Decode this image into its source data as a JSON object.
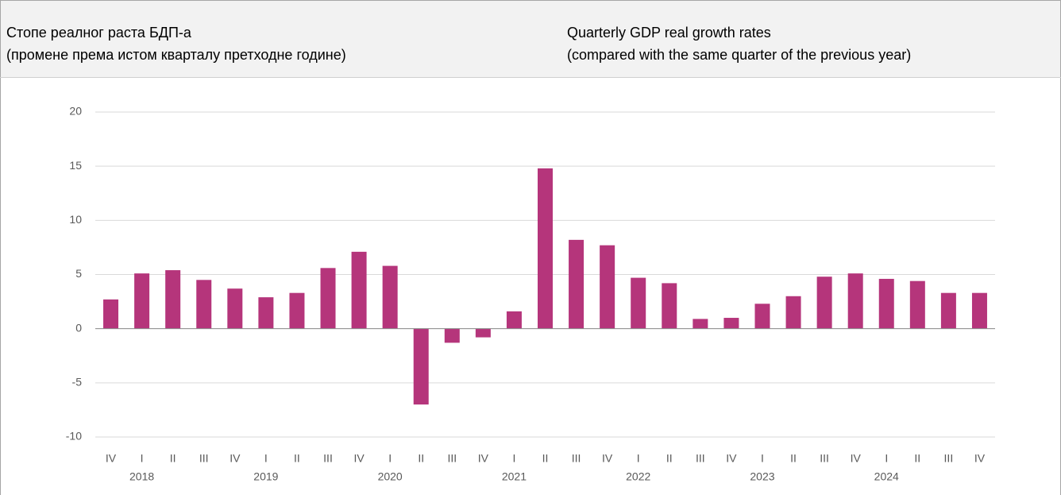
{
  "chart_data": {
    "type": "bar",
    "title_sr": [
      "Стопе реалног раста БДП-а",
      "(промене према истом кварталу претходне године)"
    ],
    "title_en": [
      "Quarterly GDP real growth rates",
      "(compared with the same quarter of the previous year)"
    ],
    "categories": [
      "IV",
      "I",
      "II",
      "III",
      "IV",
      "I",
      "II",
      "III",
      "IV",
      "I",
      "II",
      "III",
      "IV",
      "I",
      "II",
      "III",
      "IV",
      "I",
      "II",
      "III",
      "IV",
      "I",
      "II",
      "III",
      "IV",
      "I",
      "II",
      "III",
      "IV"
    ],
    "year_labels": [
      "2018",
      "2019",
      "2020",
      "2021",
      "2022",
      "2023",
      "2024"
    ],
    "values": [
      2.7,
      5.1,
      5.4,
      4.5,
      3.7,
      2.9,
      3.3,
      5.6,
      7.1,
      5.8,
      -7.0,
      -1.3,
      -0.8,
      1.6,
      14.8,
      8.2,
      7.7,
      4.7,
      4.2,
      0.9,
      1.0,
      2.3,
      3.0,
      4.8,
      5.1,
      4.6,
      4.4,
      3.3,
      3.3
    ],
    "color": "#b5357b",
    "ylim": [
      -10,
      20
    ],
    "yticks": [
      -10,
      -5,
      0,
      5,
      10,
      15,
      20
    ],
    "grid": true
  }
}
